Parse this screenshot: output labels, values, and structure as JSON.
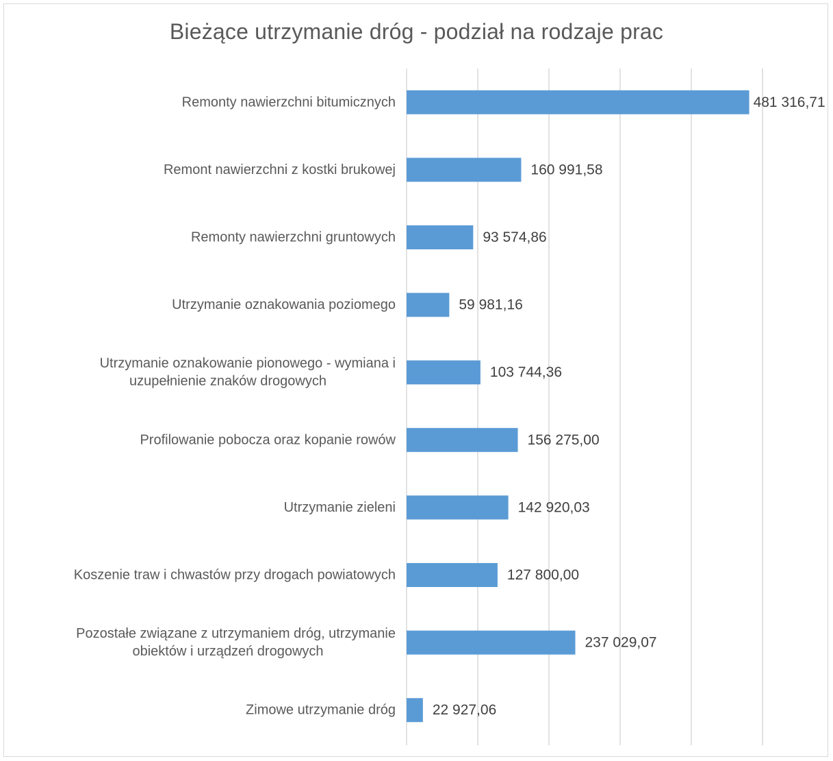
{
  "chart_data": {
    "type": "bar",
    "orientation": "horizontal",
    "title": "Bieżące utrzymanie dróg - podział na rodzaje prac",
    "categories": [
      "Remonty nawierzchni bitumicznych",
      "Remont nawierzchni z kostki brukowej",
      "Remonty nawierzchni gruntowych",
      "Utrzymanie  oznakowania poziomego",
      "Utrzymanie oznakowanie pionowego - wymiana i\nuzupełnienie znaków drogowych",
      "Profilowanie pobocza oraz kopanie rowów",
      "Utrzymanie zieleni",
      "Koszenie traw i chwastów przy drogach powiatowych",
      "Pozostałe związane z utrzymaniem dróg, utrzymanie\nobiektów i urządzeń drogowych",
      "Zimowe utrzymanie dróg"
    ],
    "values": [
      481316.71,
      160991.58,
      93574.86,
      59981.16,
      103744.36,
      156275.0,
      142920.03,
      127800.0,
      237029.07,
      22927.06
    ],
    "data_labels": [
      "481 316,71",
      "160 991,58",
      "93 574,86",
      "59 981,16",
      "103 744,36",
      "156 275,00",
      "142 920,03",
      "127 800,00",
      "237 029,07",
      "22 927,06"
    ],
    "xlim": [
      0,
      500000
    ],
    "grid": "vertical",
    "legend": "none",
    "colors": {
      "bar": "#5b9bd5",
      "gridline": "#d9d9d9",
      "text": "#595959"
    }
  }
}
